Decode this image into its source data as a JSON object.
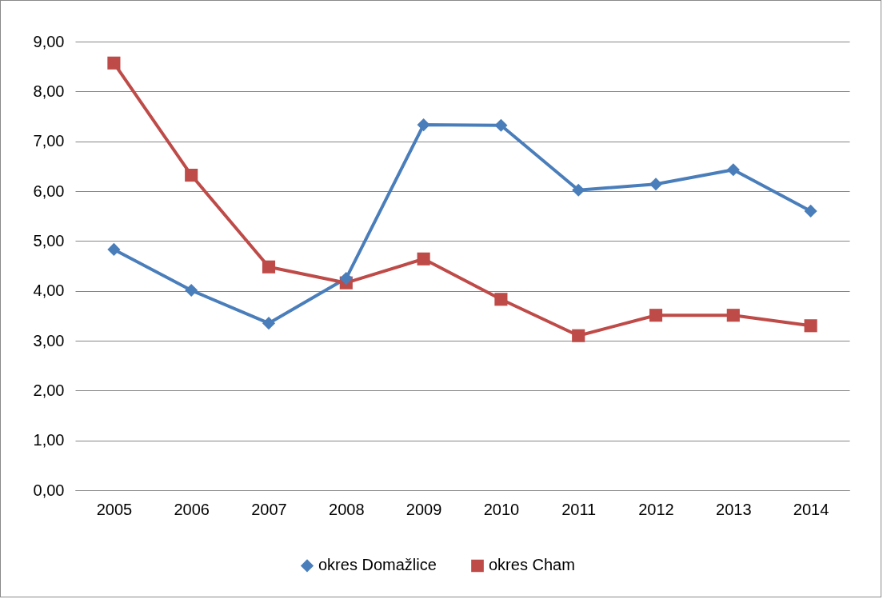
{
  "chart_data": {
    "type": "line",
    "categories": [
      "2005",
      "2006",
      "2007",
      "2008",
      "2009",
      "2010",
      "2011",
      "2012",
      "2013",
      "2014"
    ],
    "series": [
      {
        "name": "okres Domažlice",
        "color": "#4a7ebb",
        "marker": "diamond",
        "values": [
          4.83,
          4.01,
          3.35,
          4.25,
          7.33,
          7.32,
          6.02,
          6.14,
          6.43,
          5.6
        ]
      },
      {
        "name": "okres Cham",
        "color": "#be4b48",
        "marker": "square",
        "values": [
          8.57,
          6.32,
          4.48,
          4.16,
          4.64,
          3.83,
          3.1,
          3.51,
          3.51,
          3.3
        ]
      }
    ],
    "ylim": [
      0,
      9
    ],
    "yticks": [
      {
        "value": 0,
        "label": "0,00"
      },
      {
        "value": 1,
        "label": "1,00"
      },
      {
        "value": 2,
        "label": "2,00"
      },
      {
        "value": 3,
        "label": "3,00"
      },
      {
        "value": 4,
        "label": "4,00"
      },
      {
        "value": 5,
        "label": "5,00"
      },
      {
        "value": 6,
        "label": "6,00"
      },
      {
        "value": 7,
        "label": "7,00"
      },
      {
        "value": 8,
        "label": "8,00"
      },
      {
        "value": 9,
        "label": "9,00"
      }
    ],
    "grid": "y",
    "legend": "bottom",
    "line_style": "solid"
  }
}
